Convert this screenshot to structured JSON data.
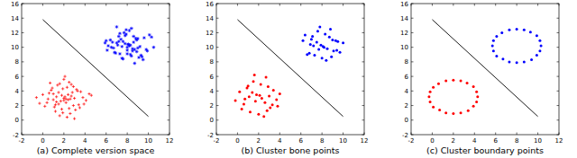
{
  "chart_data": [
    {
      "type": "scatter",
      "title": "(a) Complete version space",
      "xlim": [
        -2,
        12
      ],
      "xticks": [
        -2,
        0,
        2,
        4,
        6,
        8,
        10,
        12
      ],
      "ylim": [
        -2,
        16
      ],
      "yticks": [
        -2,
        0,
        2,
        4,
        6,
        8,
        10,
        12,
        14,
        16
      ],
      "series": [
        {
          "color": "#ff0000",
          "marker": "plus",
          "x": [
            2.1,
            1.3,
            2.8,
            0.5,
            3.4,
            1.9,
            2.5,
            1.0,
            3.0,
            2.2,
            0.2,
            1.6,
            2.9,
            3.8,
            1.2,
            2.4,
            0.8,
            1.8,
            2.6,
            3.3,
            1.5,
            2.0,
            4.1,
            0.0,
            2.7,
            1.1,
            3.6,
            2.3,
            1.7,
            0.6,
            2.9,
            1.4,
            3.1,
            2.0,
            -0.3,
            2.5,
            1.9,
            4.4,
            0.9,
            2.2,
            3.5,
            1.3,
            2.7,
            1.6,
            0.4,
            3.9,
            2.1,
            1.0,
            2.4,
            3.2,
            1.8,
            0.7,
            2.6,
            1.5,
            3.0,
            2.3,
            -0.6,
            1.2,
            4.6,
            2.0
          ],
          "values": [
            3.2,
            2.5,
            3.8,
            2.9,
            2.1,
            4.3,
            1.6,
            3.6,
            3.0,
            2.4,
            1.9,
            5.0,
            4.6,
            3.1,
            1.2,
            2.8,
            4.1,
            3.4,
            0.9,
            4.0,
            2.2,
            5.6,
            2.7,
            3.5,
            3.3,
            1.8,
            3.9,
            0.4,
            2.6,
            3.7,
            2.0,
            4.8,
            1.4,
            3.0,
            2.3,
            5.2,
            1.0,
            3.6,
            4.4,
            2.9,
            1.7,
            3.2,
            4.9,
            0.6,
            2.4,
            2.2,
            6.0,
            2.8,
            3.5,
            4.2,
            1.5,
            5.1,
            2.9,
            3.8,
            0.2,
            4.5,
            3.1,
            2.1,
            3.4,
            2.7
          ]
        },
        {
          "color": "#0000ff",
          "marker": "star",
          "x": [
            8.1,
            7.3,
            8.8,
            6.5,
            9.4,
            7.9,
            8.5,
            7.0,
            9.0,
            8.2,
            6.2,
            7.6,
            8.9,
            9.8,
            7.2,
            8.4,
            6.8,
            7.8,
            8.6,
            9.3,
            7.5,
            8.0,
            10.1,
            6.0,
            8.7,
            7.1,
            9.6,
            8.3,
            7.7,
            6.6,
            8.9,
            7.4,
            9.1,
            8.0,
            5.9,
            8.5,
            7.9,
            10.3,
            6.9,
            8.2,
            9.5,
            7.3,
            8.7,
            7.6,
            6.4,
            9.9,
            8.1,
            7.0,
            8.4,
            9.2,
            7.8,
            6.7,
            8.6,
            7.5,
            9.0,
            8.3,
            6.1,
            7.2,
            10.5,
            8.0
          ],
          "values": [
            10.4,
            9.1,
            11.2,
            10.0,
            8.7,
            11.8,
            9.5,
            10.6,
            9.9,
            12.3,
            10.2,
            8.4,
            11.0,
            9.7,
            10.8,
            12.6,
            9.3,
            10.5,
            11.5,
            8.9,
            10.1,
            9.6,
            11.7,
            10.9,
            7.8,
            10.3,
            11.3,
            9.0,
            12.0,
            10.7,
            9.4,
            11.1,
            8.6,
            10.0,
            10.6,
            9.8,
            12.4,
            11.4,
            9.2,
            10.2,
            8.3,
            11.9,
            9.7,
            10.8,
            11.0,
            9.5,
            10.4,
            12.8,
            8.8,
            10.1,
            11.6,
            9.9,
            10.7,
            8.5,
            11.2,
            10.3,
            9.6,
            11.5,
            10.0,
            9.1
          ]
        },
        {
          "type": "line",
          "color": "#000000",
          "x": [
            0,
            10
          ],
          "values": [
            13.8,
            0.5
          ]
        }
      ]
    },
    {
      "type": "scatter",
      "title": "(b) Cluster bone points",
      "xlim": [
        -2,
        12
      ],
      "xticks": [
        -2,
        0,
        2,
        4,
        6,
        8,
        10,
        12
      ],
      "ylim": [
        -2,
        16
      ],
      "yticks": [
        -2,
        0,
        2,
        4,
        6,
        8,
        10,
        12,
        14,
        16
      ],
      "series": [
        {
          "color": "#ff0000",
          "marker": "dot",
          "x": [
            1.8,
            0.6,
            2.9,
            3.7,
            1.2,
            2.3,
            0.2,
            3.1,
            1.5,
            2.6,
            4.0,
            0.9,
            2.0,
            3.4,
            1.1,
            2.7,
            0.4,
            1.7,
            3.0,
            2.2,
            0.7,
            3.8,
            1.4,
            2.5,
            1.0,
            3.3,
            2.1,
            -0.2,
            2.8,
            1.6
          ],
          "values": [
            3.5,
            2.2,
            4.6,
            2.8,
            1.1,
            3.0,
            3.9,
            1.7,
            5.3,
            2.4,
            3.6,
            4.4,
            0.8,
            4.1,
            3.2,
            5.9,
            1.5,
            2.6,
            3.3,
            4.9,
            2.9,
            1.9,
            3.8,
            0.5,
            4.7,
            2.1,
            3.4,
            2.7,
            1.3,
            6.2
          ]
        },
        {
          "color": "#0000ff",
          "marker": "dot",
          "x": [
            7.9,
            6.8,
            8.7,
            9.5,
            7.3,
            8.2,
            6.4,
            9.1,
            7.6,
            8.5,
            10.0,
            7.0,
            8.0,
            9.3,
            7.2,
            8.8,
            6.6,
            7.7,
            9.0,
            8.3,
            6.9,
            9.7,
            7.5,
            8.4,
            7.1,
            9.4,
            8.1,
            6.2,
            8.9,
            7.8
          ],
          "values": [
            10.3,
            9.2,
            11.4,
            10.8,
            8.9,
            10.0,
            11.7,
            9.5,
            12.2,
            9.8,
            10.6,
            11.1,
            8.5,
            10.9,
            10.2,
            12.5,
            9.0,
            9.7,
            11.0,
            11.8,
            10.4,
            9.3,
            10.7,
            8.2,
            11.5,
            9.6,
            10.1,
            10.9,
            8.7,
            12.8
          ]
        },
        {
          "type": "line",
          "color": "#000000",
          "x": [
            0,
            10
          ],
          "values": [
            13.8,
            0.5
          ]
        }
      ]
    },
    {
      "type": "scatter",
      "title": "(c) Cluster boundary points",
      "xlim": [
        -2,
        12
      ],
      "xticks": [
        -2,
        0,
        2,
        4,
        6,
        8,
        10,
        12
      ],
      "ylim": [
        -2,
        16
      ],
      "yticks": [
        -2,
        0,
        2,
        4,
        6,
        8,
        10,
        12,
        14,
        16
      ],
      "series": [
        {
          "color": "#ff0000",
          "marker": "dot",
          "x": [
            4.3,
            4.2,
            3.9,
            3.3,
            2.7,
            2.0,
            1.3,
            0.6,
            0.1,
            -0.2,
            -0.3,
            -0.2,
            0.1,
            0.7,
            1.3,
            2.0,
            2.7,
            3.4,
            3.9,
            4.2
          ],
          "values": [
            3.2,
            3.9,
            4.6,
            5.1,
            5.4,
            5.5,
            5.4,
            5.0,
            4.5,
            3.9,
            3.2,
            2.5,
            1.8,
            1.4,
            1.0,
            0.9,
            1.0,
            1.3,
            1.9,
            2.5
          ]
        },
        {
          "color": "#0000ff",
          "marker": "dot",
          "x": [
            10.3,
            10.2,
            9.9,
            9.3,
            8.7,
            8.0,
            7.3,
            6.6,
            6.1,
            5.8,
            5.7,
            5.8,
            6.1,
            6.7,
            7.3,
            8.0,
            8.7,
            9.4,
            9.9,
            10.2
          ],
          "values": [
            10.2,
            10.9,
            11.6,
            12.1,
            12.4,
            12.5,
            12.4,
            12.0,
            11.5,
            10.9,
            10.2,
            9.5,
            8.8,
            8.4,
            8.0,
            7.9,
            8.0,
            8.3,
            8.9,
            9.5
          ]
        },
        {
          "type": "line",
          "color": "#000000",
          "x": [
            0,
            10
          ],
          "values": [
            13.8,
            0.5
          ]
        }
      ]
    }
  ]
}
